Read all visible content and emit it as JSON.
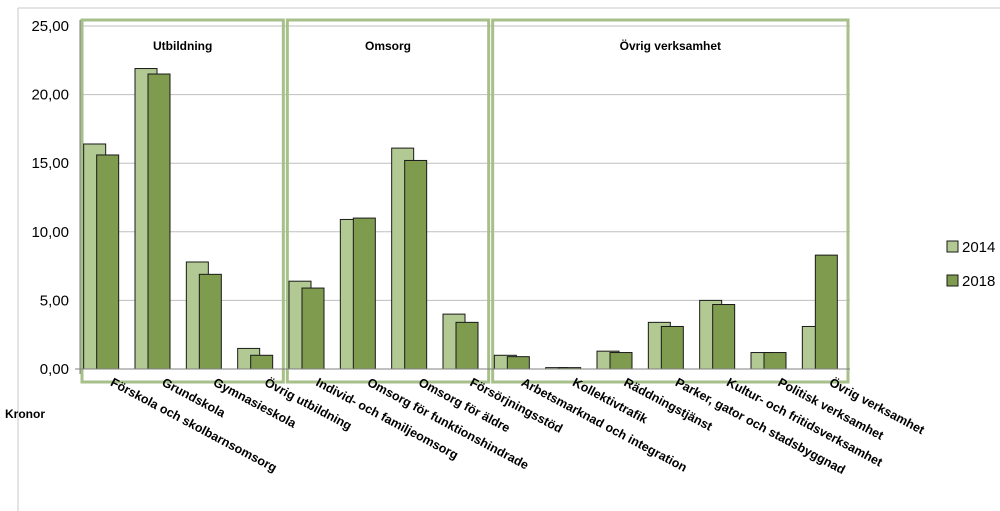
{
  "chart_data": {
    "type": "bar",
    "unit_label": "Kronor",
    "ylim": [
      0,
      25
    ],
    "yticks": [
      "0,00",
      "5,00",
      "10,00",
      "15,00",
      "20,00",
      "25,00"
    ],
    "grid": true,
    "legend_position": "right",
    "categories": [
      "Förskola och skolbarnsomsorg",
      "Grundskola",
      "Gymnasieskola",
      "Övrig utbildning",
      "Individ- och familjeomsorg",
      "Omsorg för funktionshindrade",
      "Omsorg för äldre",
      "Försörjningsstöd",
      "Arbetsmarknad och integration",
      "Kollektivtrafik",
      "Räddningstjänst",
      "Parker, gator och stadsbyggnad",
      "Kultur- och fritidsverksamhet",
      "Politisk verksamhet",
      "Övrig verksamhet"
    ],
    "series": [
      {
        "name": "2014",
        "color": "#b2c993",
        "values": [
          16.4,
          21.9,
          7.8,
          1.5,
          6.4,
          10.9,
          16.1,
          4.0,
          1.0,
          0.1,
          1.3,
          3.4,
          5.0,
          1.2,
          3.1
        ]
      },
      {
        "name": "2018",
        "color": "#7e9b4e",
        "values": [
          15.6,
          21.5,
          6.9,
          1.0,
          5.9,
          11.0,
          15.2,
          3.4,
          0.9,
          0.1,
          1.2,
          3.1,
          4.7,
          1.2,
          8.3
        ]
      }
    ],
    "groups": [
      {
        "label": "Utbildning",
        "start": 0,
        "end": 3
      },
      {
        "label": "Omsorg",
        "start": 4,
        "end": 7
      },
      {
        "label": "Övrig verksamhet",
        "start": 8,
        "end": 14
      }
    ],
    "group_border_color": "#a7bf8a",
    "bar_outline_color": "#1a1a1a",
    "grid_color": "#bfbfbf",
    "axis_color": "#808080"
  }
}
